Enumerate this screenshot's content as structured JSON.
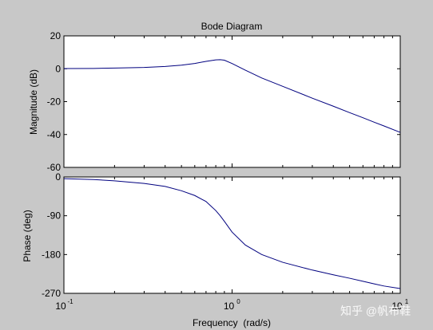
{
  "chart_data": [
    {
      "type": "line",
      "title": "Bode Diagram",
      "ylabel": "Magnitude (dB)",
      "xlabel": "",
      "xscale": "log",
      "xlim": [
        0.1,
        10
      ],
      "ylim": [
        -60,
        20
      ],
      "yticks": [
        20,
        0,
        -20,
        -40,
        -60
      ],
      "grid": false,
      "series": [
        {
          "color": "#00007f",
          "x": [
            0.1,
            0.15,
            0.2,
            0.3,
            0.4,
            0.5,
            0.6,
            0.7,
            0.8,
            0.85,
            0.9,
            1.0,
            1.2,
            1.5,
            2,
            3,
            4,
            5,
            6,
            7,
            8,
            10
          ],
          "y": [
            0.1,
            0.2,
            0.4,
            0.8,
            1.4,
            2.2,
            3.2,
            4.5,
            5.4,
            5.5,
            5.2,
            3.2,
            -0.9,
            -5.6,
            -10.7,
            -17.9,
            -22.8,
            -26.7,
            -29.8,
            -32.5,
            -34.8,
            -38.7
          ]
        }
      ]
    },
    {
      "type": "line",
      "title": "",
      "ylabel": "Phase (deg)",
      "xlabel": "Frequency  (rad/s)",
      "xscale": "log",
      "xlim": [
        0.1,
        10
      ],
      "ylim": [
        -270,
        0
      ],
      "yticks": [
        0,
        -90,
        -180,
        -270
      ],
      "xtick_labels": [
        {
          "base": "10",
          "exp": "-1"
        },
        {
          "base": "10",
          "exp": "0"
        },
        {
          "base": "10",
          "exp": "1"
        }
      ],
      "grid": false,
      "series": [
        {
          "color": "#00007f",
          "x": [
            0.1,
            0.15,
            0.2,
            0.3,
            0.4,
            0.5,
            0.6,
            0.7,
            0.8,
            0.85,
            0.9,
            1.0,
            1.2,
            1.5,
            2,
            3,
            4,
            5,
            6,
            7,
            8,
            10
          ],
          "y": [
            -4,
            -6,
            -9,
            -15,
            -22,
            -32,
            -43,
            -57,
            -78,
            -90,
            -103,
            -128,
            -158,
            -180,
            -198,
            -216,
            -227,
            -235,
            -242,
            -248,
            -253,
            -259
          ]
        }
      ]
    }
  ],
  "watermark": "知乎 @帆布鞋"
}
